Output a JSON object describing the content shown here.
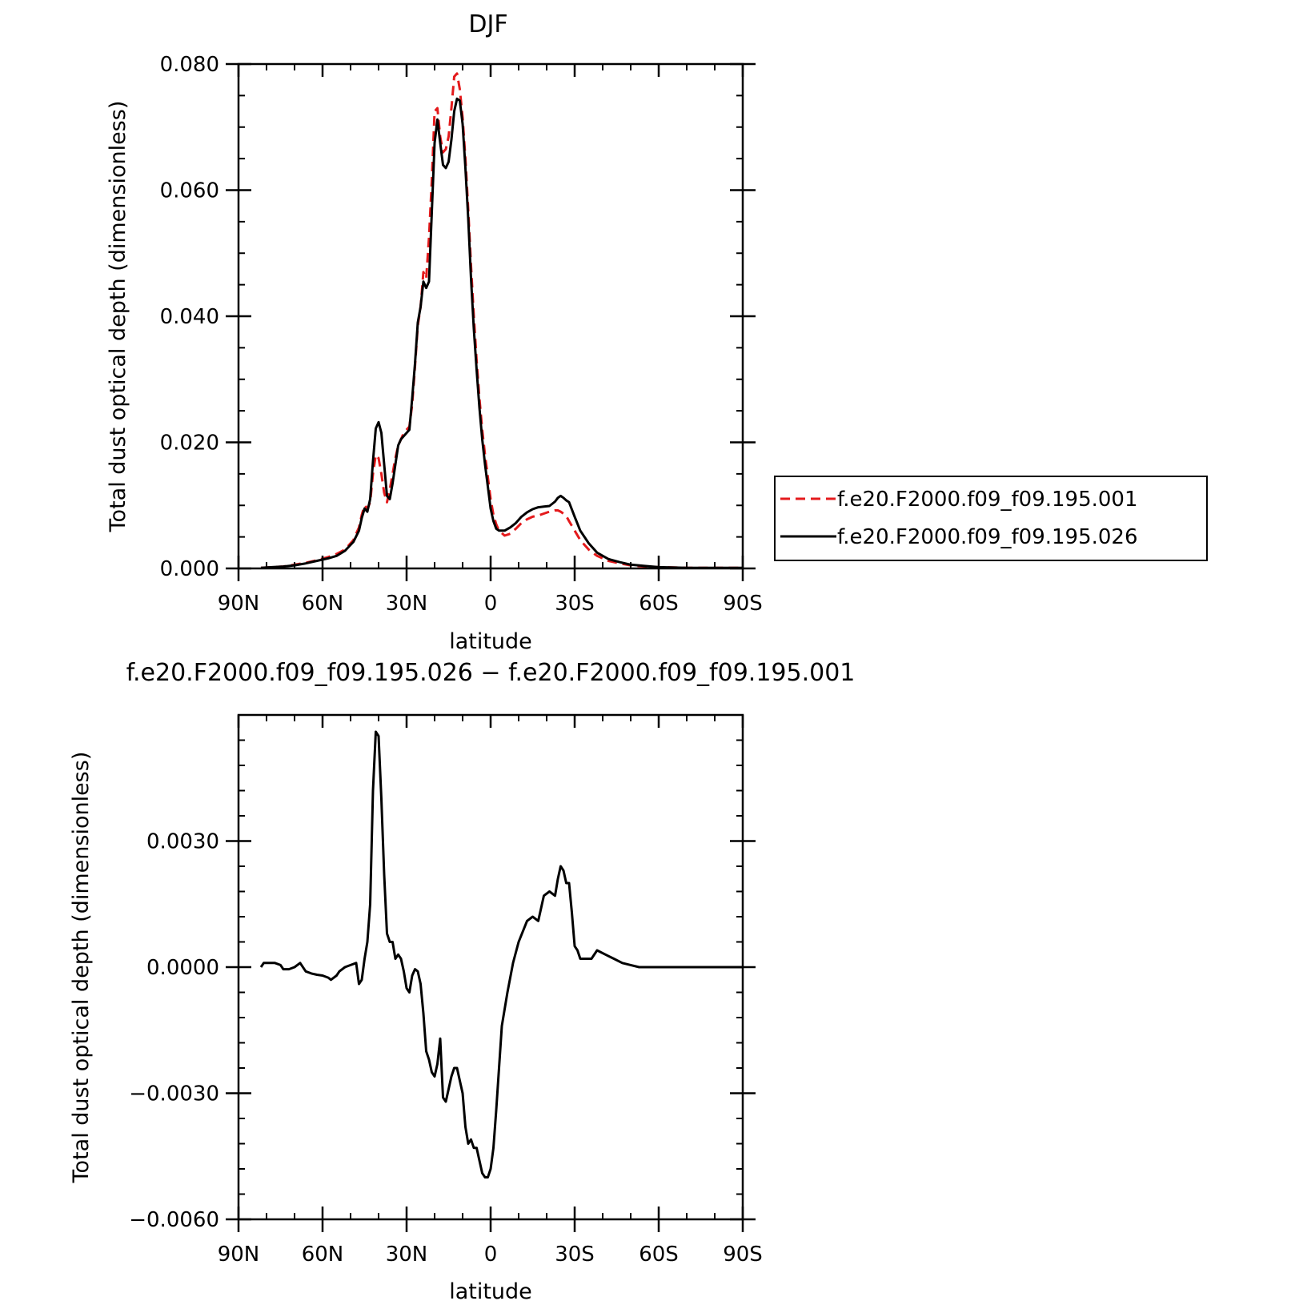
{
  "chart_data": [
    {
      "type": "line",
      "title": "DJF",
      "xlabel": "latitude",
      "ylabel": "Total dust optical depth (dimensionless)",
      "xlim": [
        90,
        -90
      ],
      "ylim": [
        0.0,
        0.08
      ],
      "x_ticks": [
        {
          "value": 90,
          "label": "90N"
        },
        {
          "value": 60,
          "label": "60N"
        },
        {
          "value": 30,
          "label": "30N"
        },
        {
          "value": 0,
          "label": "0"
        },
        {
          "value": -30,
          "label": "30S"
        },
        {
          "value": -60,
          "label": "60S"
        },
        {
          "value": -90,
          "label": "90S"
        }
      ],
      "y_ticks": [
        {
          "value": 0.0,
          "label": "0.000"
        },
        {
          "value": 0.02,
          "label": "0.020"
        },
        {
          "value": 0.04,
          "label": "0.040"
        },
        {
          "value": 0.06,
          "label": "0.060"
        },
        {
          "value": 0.08,
          "label": "0.080"
        }
      ],
      "legend_position": "right",
      "series": [
        {
          "name": "f.e20.F2000.f09_f09.195.001",
          "color": "#e41a1c",
          "dash": "dashed",
          "x": [
            82,
            78,
            74,
            70,
            66,
            62,
            58,
            55,
            52,
            49,
            47,
            46,
            45,
            44,
            43,
            42,
            41,
            40,
            39,
            38,
            37,
            36,
            35,
            34,
            33,
            32,
            31,
            30,
            29,
            28,
            27,
            26,
            25,
            24,
            23,
            22,
            21,
            20,
            19,
            18,
            17,
            16,
            15,
            14,
            13,
            12,
            11,
            10,
            9,
            8,
            7,
            6,
            5,
            4,
            3,
            2,
            1,
            0,
            -1,
            -2,
            -3,
            -5,
            -7,
            -9,
            -11,
            -13,
            -15,
            -17,
            -19,
            -21,
            -23,
            -24,
            -25,
            -26,
            -27,
            -28,
            -30,
            -32,
            -35,
            -38,
            -42,
            -46,
            -50,
            -55,
            -60,
            -70,
            -80,
            -90
          ],
          "values": [
            0.0001,
            0.0002,
            0.0003,
            0.0006,
            0.0009,
            0.0013,
            0.0018,
            0.0023,
            0.003,
            0.0045,
            0.0065,
            0.0085,
            0.01,
            0.0095,
            0.0105,
            0.015,
            0.018,
            0.0175,
            0.015,
            0.012,
            0.0105,
            0.0125,
            0.015,
            0.0175,
            0.0195,
            0.0205,
            0.0215,
            0.022,
            0.0225,
            0.026,
            0.032,
            0.0385,
            0.0415,
            0.047,
            0.046,
            0.0525,
            0.0615,
            0.0725,
            0.073,
            0.0685,
            0.066,
            0.0665,
            0.0685,
            0.073,
            0.078,
            0.0785,
            0.076,
            0.0715,
            0.065,
            0.057,
            0.048,
            0.04,
            0.033,
            0.027,
            0.022,
            0.018,
            0.0145,
            0.011,
            0.0085,
            0.007,
            0.006,
            0.0052,
            0.0055,
            0.0063,
            0.0072,
            0.0078,
            0.0082,
            0.0084,
            0.0087,
            0.009,
            0.0092,
            0.0092,
            0.009,
            0.0087,
            0.0083,
            0.0075,
            0.006,
            0.0045,
            0.003,
            0.002,
            0.0012,
            0.0008,
            0.0005,
            0.0003,
            0.0002,
            0.0001,
            0.0001,
            0.0001
          ]
        },
        {
          "name": "f.e20.F2000.f09_f09.195.026",
          "color": "#000000",
          "dash": "solid",
          "x": [
            82,
            78,
            74,
            70,
            66,
            62,
            58,
            55,
            52,
            49,
            47,
            46,
            45,
            44,
            43,
            42,
            41,
            40,
            39,
            38,
            37,
            36,
            35,
            34,
            33,
            32,
            31,
            30,
            29,
            28,
            27,
            26,
            25,
            24,
            23,
            22,
            21,
            20,
            19,
            18,
            17,
            16,
            15,
            14,
            13,
            12,
            11,
            10,
            9,
            8,
            7,
            6,
            5,
            4,
            3,
            2,
            1,
            0,
            -1,
            -2,
            -3,
            -5,
            -7,
            -9,
            -11,
            -13,
            -15,
            -17,
            -19,
            -21,
            -23,
            -24,
            -25,
            -26,
            -27,
            -28,
            -30,
            -32,
            -35,
            -38,
            -42,
            -46,
            -50,
            -55,
            -60,
            -70,
            -80,
            -90
          ],
          "values": [
            0.0001,
            0.0002,
            0.0003,
            0.0005,
            0.0008,
            0.0012,
            0.0016,
            0.002,
            0.0028,
            0.0042,
            0.006,
            0.008,
            0.0095,
            0.009,
            0.011,
            0.017,
            0.0222,
            0.0232,
            0.0215,
            0.0165,
            0.0115,
            0.011,
            0.0135,
            0.0165,
            0.0195,
            0.0205,
            0.021,
            0.0215,
            0.022,
            0.027,
            0.0325,
            0.039,
            0.0415,
            0.0455,
            0.0445,
            0.0455,
            0.0565,
            0.0675,
            0.0712,
            0.0675,
            0.064,
            0.0635,
            0.0645,
            0.068,
            0.0725,
            0.0745,
            0.0742,
            0.0705,
            0.0635,
            0.0555,
            0.046,
            0.038,
            0.0315,
            0.0255,
            0.0205,
            0.0165,
            0.013,
            0.0095,
            0.0075,
            0.0063,
            0.006,
            0.006,
            0.0065,
            0.0072,
            0.0082,
            0.0089,
            0.0094,
            0.0097,
            0.0098,
            0.0099,
            0.0106,
            0.0112,
            0.0115,
            0.0112,
            0.0108,
            0.0105,
            0.0082,
            0.006,
            0.004,
            0.0025,
            0.0015,
            0.001,
            0.0006,
            0.0004,
            0.0002,
            0.0001,
            0.0001,
            0.0001
          ]
        }
      ]
    },
    {
      "type": "line",
      "title": "f.e20.F2000.f09_f09.195.026 − f.e20.F2000.f09_f09.195.001",
      "xlabel": "latitude",
      "ylabel": "Total dust optical depth (dimensionless)",
      "xlim": [
        90,
        -90
      ],
      "ylim": [
        -0.006,
        0.006
      ],
      "x_ticks": [
        {
          "value": 90,
          "label": "90N"
        },
        {
          "value": 60,
          "label": "60N"
        },
        {
          "value": 30,
          "label": "30N"
        },
        {
          "value": 0,
          "label": "0"
        },
        {
          "value": -30,
          "label": "30S"
        },
        {
          "value": -60,
          "label": "60S"
        },
        {
          "value": -90,
          "label": "90S"
        }
      ],
      "y_ticks": [
        {
          "value": -0.006,
          "label": "−0.0060"
        },
        {
          "value": -0.003,
          "label": "−0.0030"
        },
        {
          "value": 0.0,
          "label": "0.0000"
        },
        {
          "value": 0.003,
          "label": "0.0030"
        }
      ],
      "series": [
        {
          "color": "#000000",
          "dash": "solid",
          "x": [
            82,
            81,
            79,
            77,
            75,
            74,
            72,
            70,
            68,
            66,
            64,
            62,
            60,
            58,
            57,
            55,
            54,
            52,
            50,
            48,
            47,
            46,
            45,
            44,
            43,
            42,
            41,
            40,
            39,
            38,
            37,
            36,
            35,
            34,
            33,
            32,
            31,
            30,
            29,
            28,
            27,
            26,
            25,
            24,
            23,
            22,
            21,
            20,
            19,
            18,
            17,
            16,
            15,
            14,
            13,
            12,
            11,
            10,
            9,
            8,
            7,
            6,
            5,
            4,
            3,
            2,
            1,
            0,
            -1,
            -2,
            -3,
            -4,
            -6,
            -8,
            -10,
            -13,
            -15,
            -17,
            -19,
            -21,
            -23,
            -24,
            -25,
            -26,
            -27,
            -28,
            -29,
            -30,
            -31,
            -32,
            -34,
            -36,
            -38,
            -41,
            -44,
            -47,
            -50,
            -53,
            -56,
            -60,
            -70,
            -80,
            -90
          ],
          "values": [
            0.0,
            0.0001,
            0.0001,
            0.0001,
            5e-05,
            -5e-05,
            -5e-05,
            0.0,
            0.0001,
            -0.0001,
            -0.00015,
            -0.00018,
            -0.0002,
            -0.00025,
            -0.0003,
            -0.0002,
            -0.0001,
            0.0,
            5e-05,
            0.0001,
            -0.0004,
            -0.0003,
            0.0002,
            0.0006,
            0.0015,
            0.0042,
            0.0056,
            0.0055,
            0.004,
            0.0022,
            0.0008,
            0.0006,
            0.0006,
            0.0002,
            0.0003,
            0.0002,
            -0.0001,
            -0.0005,
            -0.0006,
            -0.0002,
            -5e-05,
            -0.0001,
            -0.0004,
            -0.0011,
            -0.002,
            -0.0022,
            -0.0025,
            -0.0026,
            -0.0023,
            -0.0017,
            -0.0031,
            -0.0032,
            -0.0029,
            -0.0026,
            -0.0024,
            -0.0024,
            -0.0027,
            -0.003,
            -0.0038,
            -0.0042,
            -0.0041,
            -0.0043,
            -0.0043,
            -0.0046,
            -0.0049,
            -0.005,
            -0.005,
            -0.0048,
            -0.0043,
            -0.0034,
            -0.0024,
            -0.0014,
            -0.0006,
            0.0001,
            0.0006,
            0.0011,
            0.0012,
            0.0011,
            0.0017,
            0.0018,
            0.0017,
            0.0021,
            0.0024,
            0.0023,
            0.002,
            0.002,
            0.0013,
            0.0005,
            0.0004,
            0.0002,
            0.0002,
            0.0002,
            0.0004,
            0.0003,
            0.0002,
            0.0001,
            5e-05,
            0.0,
            0.0,
            0.0,
            0.0,
            0.0,
            0.0
          ]
        }
      ]
    }
  ]
}
